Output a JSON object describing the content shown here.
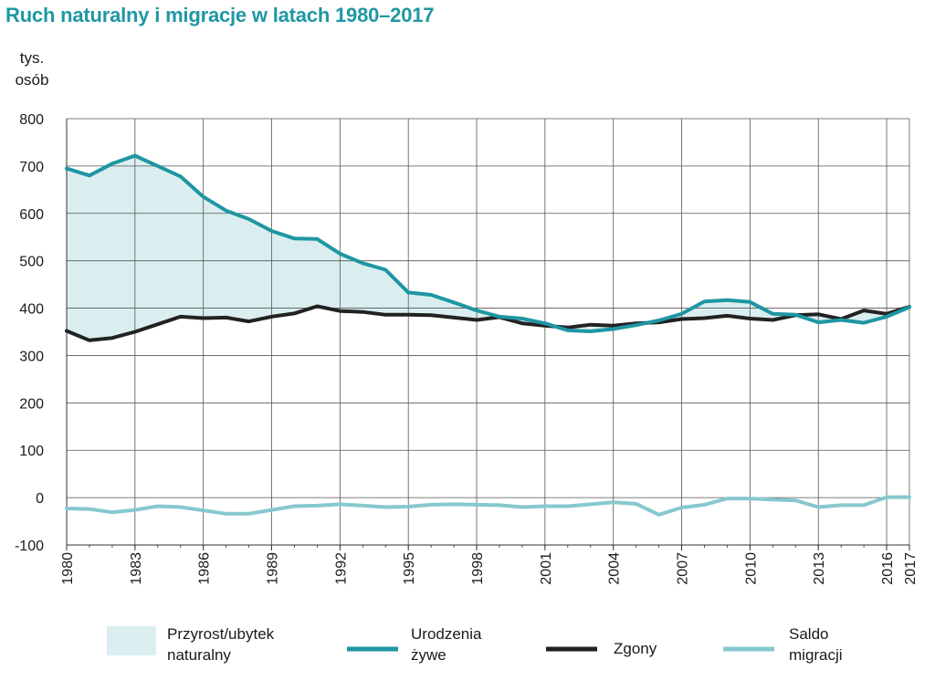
{
  "chart_data": {
    "type": "line",
    "title": "Ruch naturalny i migracje w latach 1980–2017",
    "ylabel_line1": "tys.",
    "ylabel_line2": "osób",
    "xlabel": "",
    "ylim": [
      -100,
      800
    ],
    "yticks": [
      -100,
      0,
      100,
      200,
      300,
      400,
      500,
      600,
      700,
      800
    ],
    "xlim": [
      1980,
      2017
    ],
    "xticks": [
      1980,
      1983,
      1986,
      1989,
      1992,
      1995,
      1998,
      2001,
      2004,
      2007,
      2010,
      2013,
      2016,
      2017
    ],
    "grid": true,
    "x": [
      1980,
      1981,
      1982,
      1983,
      1984,
      1985,
      1986,
      1987,
      1988,
      1989,
      1990,
      1991,
      1992,
      1993,
      1994,
      1995,
      1996,
      1997,
      1998,
      1999,
      2000,
      2001,
      2002,
      2003,
      2004,
      2005,
      2006,
      2007,
      2008,
      2009,
      2010,
      2011,
      2012,
      2013,
      2014,
      2015,
      2016,
      2017
    ],
    "series": [
      {
        "name": "Urodzenia żywe",
        "color": "#1e96a3",
        "values": [
          695,
          680,
          705,
          722,
          700,
          678,
          635,
          606,
          588,
          563,
          547,
          546,
          515,
          495,
          481,
          433,
          428,
          412,
          395,
          382,
          378,
          368,
          353,
          351,
          356,
          364,
          374,
          388,
          414,
          417,
          413,
          388,
          386,
          370,
          375,
          369,
          382,
          402
        ]
      },
      {
        "name": "Zgony",
        "color": "#222222",
        "values": [
          352,
          332,
          337,
          350,
          366,
          382,
          379,
          380,
          372,
          382,
          389,
          404,
          394,
          392,
          386,
          386,
          385,
          380,
          375,
          381,
          368,
          363,
          359,
          365,
          363,
          368,
          370,
          377,
          379,
          384,
          378,
          375,
          385,
          387,
          377,
          395,
          388,
          403
        ]
      },
      {
        "name": "Saldo migracji",
        "color": "#86c8cf",
        "values": [
          -23,
          -24,
          -31,
          -26,
          -18,
          -20,
          -27,
          -34,
          -34,
          -26,
          -18,
          -17,
          -14,
          -17,
          -20,
          -19,
          -15,
          -14,
          -15,
          -16,
          -20,
          -18,
          -18,
          -14,
          -10,
          -13,
          -36,
          -21,
          -15,
          -2,
          -2,
          -4,
          -6,
          -20,
          -16,
          -16,
          1,
          1
        ]
      }
    ],
    "area": {
      "name": "Przyrost/ubytek naturalny",
      "color": "#daeef0",
      "between": [
        "Urodzenia żywe",
        "Zgony"
      ]
    },
    "legend": [
      {
        "key": "area",
        "line1": "Przyrost/ubytek",
        "line2": "naturalny"
      },
      {
        "key": "births",
        "line1": "Urodzenia",
        "line2": "żywe"
      },
      {
        "key": "deaths",
        "line1": "Zgony",
        "line2": ""
      },
      {
        "key": "migration",
        "line1": "Saldo",
        "line2": "migracji"
      }
    ],
    "legend_position": "bottom"
  }
}
